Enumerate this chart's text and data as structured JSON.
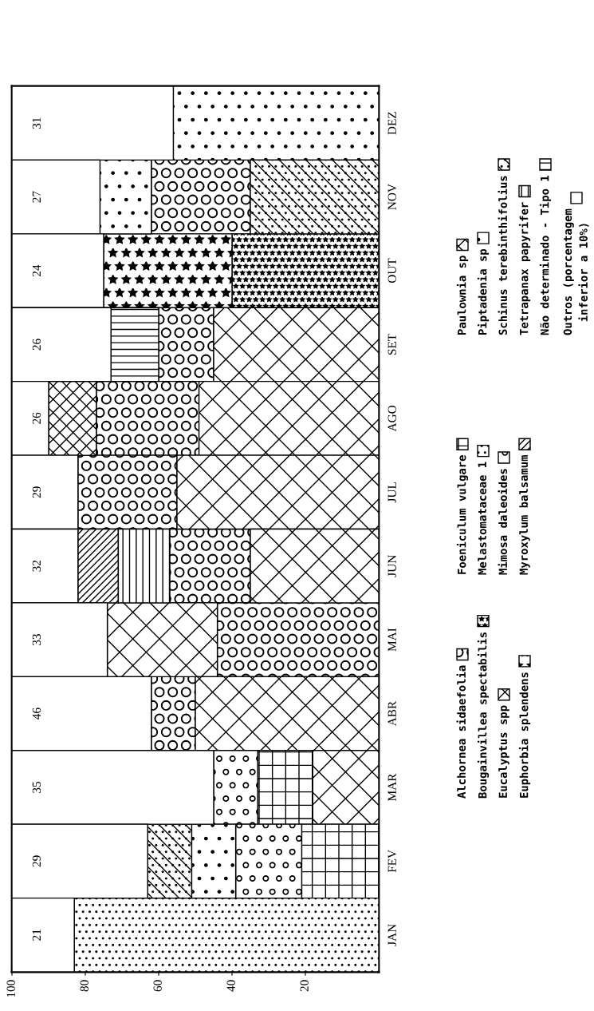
{
  "chart_data": {
    "type": "bar",
    "orientation": "horizontal",
    "categories": [
      "DEZ",
      "NOV",
      "OUT",
      "SET",
      "AGO",
      "JUL",
      "JUN",
      "MAI",
      "ABR",
      "MAR",
      "FEV",
      "JAN"
    ],
    "series": [
      {
        "name": "Alchornea sidaefolia",
        "color": "#000000",
        "values": [
          null,
          27,
          null,
          15,
          28,
          27,
          22,
          44,
          12,
          null,
          null,
          null
        ],
        "base": [
          null,
          35,
          null,
          45,
          49,
          55,
          35,
          0,
          50,
          null,
          null,
          null
        ]
      },
      {
        "name": "Bougainvillea spectabilis",
        "color": "#000000",
        "values": [
          null,
          null,
          40,
          null,
          null,
          null,
          null,
          null,
          null,
          null,
          null,
          null
        ],
        "base": [
          null,
          null,
          0,
          null,
          null,
          null,
          null,
          null,
          null,
          null,
          null,
          null
        ]
      },
      {
        "name": "Eucalyptus spp",
        "color": "#000000",
        "values": [
          null,
          null,
          null,
          45,
          49,
          55,
          35,
          30,
          50,
          18,
          null,
          null
        ],
        "base": [
          null,
          null,
          null,
          0,
          0,
          0,
          0,
          44,
          0,
          0,
          null,
          null
        ]
      },
      {
        "name": "Euphorbia splendens",
        "color": "#000000",
        "values": [
          null,
          null,
          35,
          null,
          null,
          null,
          null,
          null,
          null,
          null,
          null,
          null
        ],
        "base": [
          null,
          null,
          40,
          null,
          null,
          null,
          null,
          null,
          null,
          null,
          null,
          null
        ]
      },
      {
        "name": "Foeniculum vulgare",
        "color": "#000000",
        "values": [
          null,
          null,
          null,
          null,
          null,
          null,
          null,
          null,
          null,
          15,
          21,
          null
        ],
        "base": [
          null,
          null,
          null,
          null,
          null,
          null,
          null,
          null,
          null,
          18,
          0,
          null
        ]
      },
      {
        "name": "Melastomataceae 1",
        "color": "#000000",
        "values": [
          null,
          null,
          null,
          null,
          null,
          null,
          null,
          null,
          null,
          null,
          null,
          83
        ],
        "base": [
          null,
          null,
          null,
          null,
          null,
          null,
          null,
          null,
          null,
          null,
          null,
          0
        ]
      },
      {
        "name": "Mimosa daleoides",
        "color": "#000000",
        "values": [
          null,
          null,
          null,
          null,
          null,
          null,
          null,
          null,
          null,
          12,
          18,
          null
        ],
        "base": [
          null,
          null,
          null,
          null,
          null,
          null,
          null,
          null,
          null,
          33,
          21,
          null
        ]
      },
      {
        "name": "Myroxylum balsamum",
        "color": "#000000",
        "values": [
          null,
          null,
          null,
          null,
          null,
          null,
          11,
          null,
          null,
          null,
          null,
          null
        ],
        "base": [
          null,
          null,
          null,
          null,
          null,
          null,
          71,
          null,
          null,
          null,
          null,
          null
        ]
      },
      {
        "name": "Paulownia sp",
        "color": "#000000",
        "values": [
          null,
          null,
          null,
          null,
          13,
          null,
          null,
          null,
          null,
          null,
          null,
          null
        ],
        "base": [
          null,
          null,
          null,
          null,
          77,
          null,
          null,
          null,
          null,
          null,
          null,
          null
        ]
      },
      {
        "name": "Piptadenia sp",
        "color": "#000000",
        "values": [
          56,
          14,
          null,
          null,
          null,
          null,
          null,
          null,
          null,
          null,
          12,
          null
        ],
        "base": [
          0,
          62,
          null,
          null,
          null,
          null,
          null,
          null,
          null,
          null,
          39,
          null
        ]
      },
      {
        "name": "Schinus terebinthifolius",
        "color": "#000000",
        "values": [
          null,
          35,
          null,
          null,
          null,
          null,
          null,
          null,
          null,
          null,
          12,
          null
        ],
        "base": [
          null,
          0,
          null,
          null,
          null,
          null,
          null,
          null,
          null,
          null,
          51,
          null
        ]
      },
      {
        "name": "Tetrapanax papyrifer",
        "color": "#000000",
        "values": [
          null,
          null,
          null,
          null,
          null,
          null,
          14,
          null,
          null,
          null,
          null,
          null
        ],
        "base": [
          null,
          null,
          null,
          null,
          null,
          null,
          57,
          null,
          null,
          null,
          null,
          null
        ]
      },
      {
        "name": "Não determinado - Tipo 1",
        "color": "#000000",
        "values": [
          null,
          null,
          null,
          13,
          null,
          null,
          null,
          null,
          null,
          null,
          null,
          null
        ],
        "base": [
          null,
          null,
          null,
          60,
          null,
          null,
          null,
          null,
          null,
          null,
          null,
          null
        ]
      },
      {
        "name": "Outros (porcentagem\ninferior a 10%)",
        "color": "#000000",
        "values": [
          44,
          24,
          25,
          27,
          10,
          18,
          18,
          26,
          38,
          55,
          37,
          17
        ],
        "base": [
          56,
          76,
          75,
          73,
          90,
          82,
          82,
          74,
          62,
          45,
          63,
          83
        ]
      }
    ],
    "xlim": [
      100,
      0
    ],
    "xticks": [
      100,
      80,
      60,
      40,
      20
    ],
    "annotations": [
      "31",
      "27",
      "24",
      "26",
      "26",
      "29",
      "32",
      "33",
      "46",
      "35",
      "29",
      "21"
    ],
    "legend": "right"
  }
}
